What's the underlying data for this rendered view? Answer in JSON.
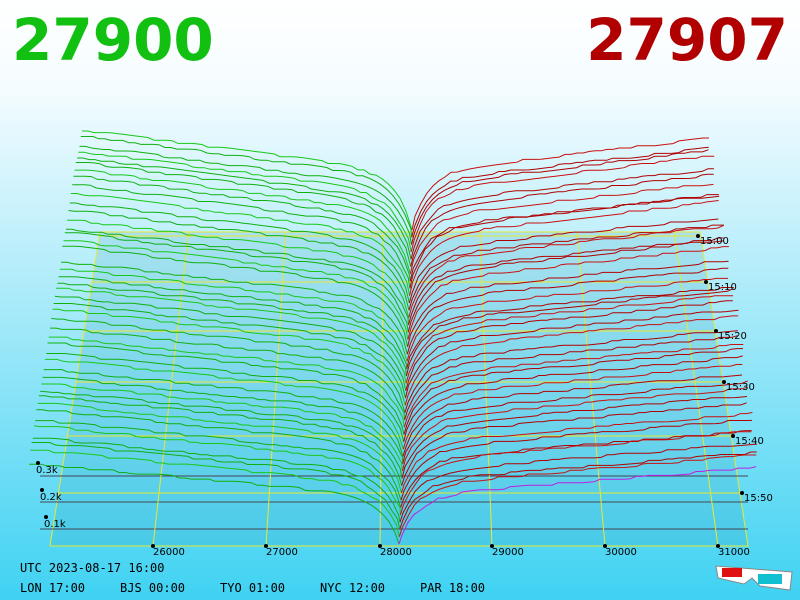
{
  "header": {
    "bid": "27900",
    "ask": "27907"
  },
  "price_axis": {
    "labels": [
      "26000",
      "27000",
      "28000",
      "29000",
      "30000",
      "31000"
    ]
  },
  "time_axis": {
    "labels": [
      "15:00",
      "15:10",
      "15:20",
      "15:30",
      "15:40",
      "15:50"
    ]
  },
  "volume_axis": {
    "labels": [
      "0.3k",
      "0.2k",
      "0.1k"
    ]
  },
  "footer": {
    "utc": "UTC 2023-08-17 16:00",
    "zones": [
      "LON 17:00",
      "BJS 00:00",
      "TYO 01:00",
      "NYC 12:00",
      "PAR 18:00"
    ]
  }
}
